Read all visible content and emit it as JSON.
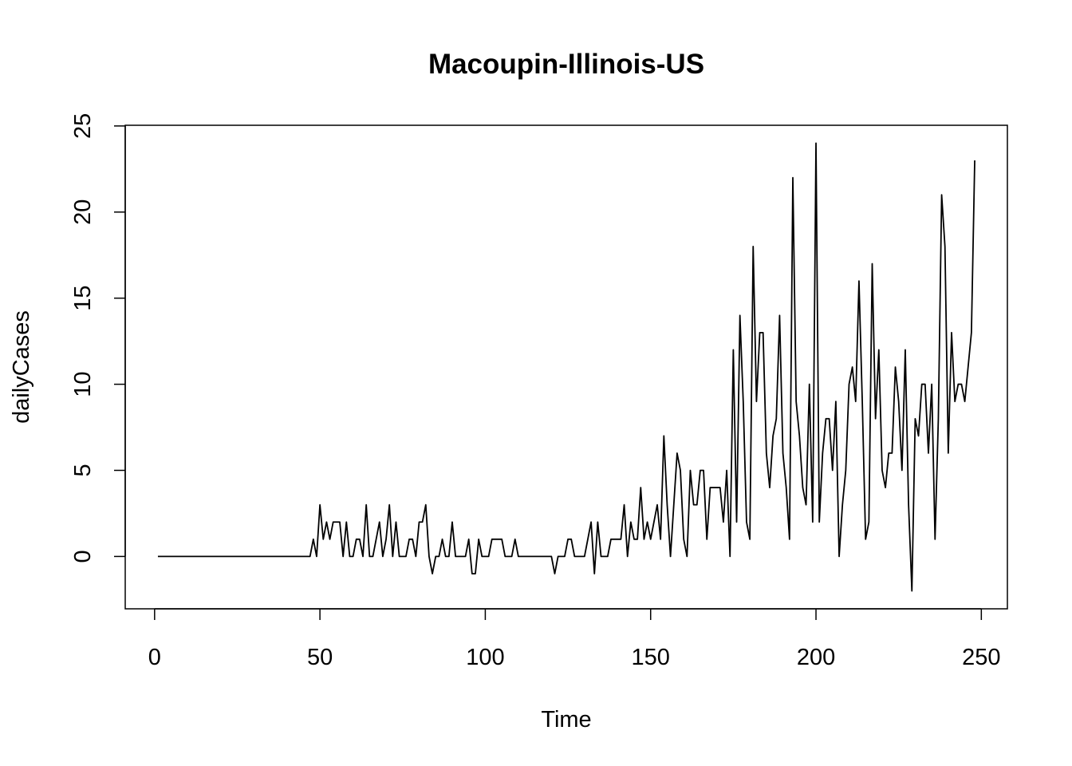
{
  "chart_data": {
    "type": "line",
    "title": "Macoupin-Illinois-US",
    "xlabel": "Time",
    "ylabel": "dailyCases",
    "x": [
      1,
      2,
      3,
      4,
      5,
      6,
      7,
      8,
      9,
      10,
      11,
      12,
      13,
      14,
      15,
      16,
      17,
      18,
      19,
      20,
      21,
      22,
      23,
      24,
      25,
      26,
      27,
      28,
      29,
      30,
      31,
      32,
      33,
      34,
      35,
      36,
      37,
      38,
      39,
      40,
      41,
      42,
      43,
      44,
      45,
      46,
      47,
      48,
      49,
      50,
      51,
      52,
      53,
      54,
      55,
      56,
      57,
      58,
      59,
      60,
      61,
      62,
      63,
      64,
      65,
      66,
      67,
      68,
      69,
      70,
      71,
      72,
      73,
      74,
      75,
      76,
      77,
      78,
      79,
      80,
      81,
      82,
      83,
      84,
      85,
      86,
      87,
      88,
      89,
      90,
      91,
      92,
      93,
      94,
      95,
      96,
      97,
      98,
      99,
      100,
      101,
      102,
      103,
      104,
      105,
      106,
      107,
      108,
      109,
      110,
      111,
      112,
      113,
      114,
      115,
      116,
      117,
      118,
      119,
      120,
      121,
      122,
      123,
      124,
      125,
      126,
      127,
      128,
      129,
      130,
      131,
      132,
      133,
      134,
      135,
      136,
      137,
      138,
      139,
      140,
      141,
      142,
      143,
      144,
      145,
      146,
      147,
      148,
      149,
      150,
      151,
      152,
      153,
      154,
      155,
      156,
      157,
      158,
      159,
      160,
      161,
      162,
      163,
      164,
      165,
      166,
      167,
      168,
      169,
      170,
      171,
      172,
      173,
      174,
      175,
      176,
      177,
      178,
      179,
      180,
      181,
      182,
      183,
      184,
      185,
      186,
      187,
      188,
      189,
      190,
      191,
      192,
      193,
      194,
      195,
      196,
      197,
      198,
      199,
      200,
      201,
      202,
      203,
      204,
      205,
      206,
      207,
      208,
      209,
      210,
      211,
      212,
      213,
      214,
      215,
      216,
      217,
      218,
      219,
      220,
      221,
      222,
      223,
      224,
      225,
      226,
      227,
      228,
      229,
      230,
      231,
      232,
      233,
      234,
      235,
      236,
      237,
      238,
      239,
      240,
      241,
      242,
      243,
      244,
      245,
      246,
      247,
      248
    ],
    "series": [
      {
        "name": "dailyCases",
        "color": "#000000",
        "values": [
          0,
          0,
          0,
          0,
          0,
          0,
          0,
          0,
          0,
          0,
          0,
          0,
          0,
          0,
          0,
          0,
          0,
          0,
          0,
          0,
          0,
          0,
          0,
          0,
          0,
          0,
          0,
          0,
          0,
          0,
          0,
          0,
          0,
          0,
          0,
          0,
          0,
          0,
          0,
          0,
          0,
          0,
          0,
          0,
          0,
          0,
          0,
          1,
          0,
          3,
          1,
          2,
          1,
          2,
          2,
          2,
          0,
          2,
          0,
          0,
          1,
          1,
          0,
          3,
          0,
          0,
          1,
          2,
          0,
          1,
          3,
          0,
          2,
          0,
          0,
          0,
          1,
          1,
          0,
          2,
          2,
          3,
          0,
          -1,
          0,
          0,
          1,
          0,
          0,
          2,
          0,
          0,
          0,
          0,
          1,
          -1,
          -1,
          1,
          0,
          0,
          0,
          1,
          1,
          1,
          1,
          0,
          0,
          0,
          1,
          0,
          0,
          0,
          0,
          0,
          0,
          0,
          0,
          0,
          0,
          0,
          -1,
          0,
          0,
          0,
          1,
          1,
          0,
          0,
          0,
          0,
          1,
          2,
          -1,
          2,
          0,
          0,
          0,
          1,
          1,
          1,
          1,
          3,
          0,
          2,
          1,
          1,
          4,
          1,
          2,
          1,
          2,
          3,
          1,
          7,
          3,
          0,
          3,
          6,
          5,
          1,
          0,
          5,
          3,
          3,
          5,
          5,
          1,
          4,
          4,
          4,
          4,
          2,
          5,
          0,
          12,
          2,
          14,
          9,
          2,
          1,
          18,
          9,
          13,
          13,
          6,
          4,
          7,
          8,
          14,
          6,
          4,
          1,
          22,
          9,
          7,
          4,
          3,
          10,
          2,
          24,
          2,
          6,
          8,
          8,
          5,
          9,
          0,
          3,
          5,
          10,
          11,
          9,
          16,
          9,
          1,
          2,
          17,
          8,
          12,
          5,
          4,
          6,
          6,
          11,
          9,
          5,
          12,
          3,
          -2,
          8,
          7,
          10,
          10,
          6,
          10,
          1,
          8,
          21,
          18,
          6,
          13,
          9,
          10,
          10,
          9,
          11,
          13,
          23
        ]
      }
    ],
    "xlim": [
      -8.88,
      257.88
    ],
    "ylim": [
      -3.04,
      25.04
    ],
    "xticks": [
      0,
      50,
      100,
      150,
      200,
      250
    ],
    "yticks": [
      0,
      5,
      10,
      15,
      20,
      25
    ]
  }
}
